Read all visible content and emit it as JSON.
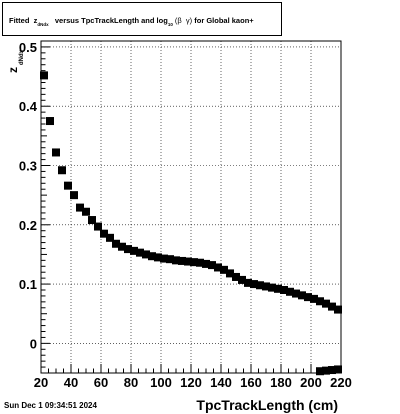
{
  "title": {
    "prefix": "Fitted",
    "z_symbol": "z",
    "z_sub": "dNdx",
    "middle": "versus TpcTrackLength and log",
    "log_sub": "10",
    "paren_open": "(",
    "beta": "β",
    "gamma": "γ",
    "paren_close": ")",
    "suffix": "for Global kaon+"
  },
  "footer": {
    "date": "Sun Dec  1 09:34:51 2024"
  },
  "chart_data": {
    "type": "scatter",
    "xlabel": "TpcTrackLength (cm)",
    "ylabel": "z",
    "ylabel_sub": "dNdx",
    "xlim": [
      20,
      220
    ],
    "ylim": [
      -0.05,
      0.51
    ],
    "xticks": [
      20,
      40,
      60,
      80,
      100,
      120,
      140,
      160,
      180,
      200,
      220
    ],
    "yticks": [
      0,
      0.1,
      0.2,
      0.3,
      0.4,
      0.5
    ],
    "ytick_labels": [
      "0",
      "0.1",
      "0.2",
      "0.3",
      "0.4",
      "0.5"
    ],
    "grid": true,
    "marker": "square",
    "color": "#000000",
    "series": [
      {
        "points": [
          [
            22,
            0.452
          ],
          [
            26,
            0.375
          ],
          [
            30,
            0.322
          ],
          [
            34,
            0.292
          ],
          [
            38,
            0.266
          ],
          [
            42,
            0.25
          ],
          [
            46,
            0.229
          ],
          [
            50,
            0.222
          ],
          [
            54,
            0.208
          ],
          [
            58,
            0.197
          ],
          [
            62,
            0.185
          ],
          [
            66,
            0.178
          ],
          [
            70,
            0.168
          ],
          [
            74,
            0.163
          ],
          [
            78,
            0.159
          ],
          [
            82,
            0.156
          ],
          [
            86,
            0.153
          ],
          [
            90,
            0.15
          ],
          [
            94,
            0.147
          ],
          [
            98,
            0.145
          ],
          [
            102,
            0.143
          ],
          [
            106,
            0.142
          ],
          [
            110,
            0.14
          ],
          [
            114,
            0.139
          ],
          [
            118,
            0.138
          ],
          [
            122,
            0.137
          ],
          [
            126,
            0.136
          ],
          [
            130,
            0.134
          ],
          [
            134,
            0.132
          ],
          [
            138,
            0.128
          ],
          [
            142,
            0.124
          ],
          [
            146,
            0.118
          ],
          [
            150,
            0.112
          ],
          [
            154,
            0.107
          ],
          [
            158,
            0.102
          ],
          [
            162,
            0.1
          ],
          [
            166,
            0.098
          ],
          [
            170,
            0.096
          ],
          [
            174,
            0.094
          ],
          [
            178,
            0.092
          ],
          [
            182,
            0.09
          ],
          [
            186,
            0.087
          ],
          [
            190,
            0.084
          ],
          [
            194,
            0.081
          ],
          [
            198,
            0.078
          ],
          [
            202,
            0.075
          ],
          [
            206,
            0.071
          ],
          [
            210,
            0.067
          ],
          [
            214,
            0.062
          ],
          [
            218,
            0.057
          ]
        ]
      },
      {
        "points": [
          [
            206,
            -0.047
          ],
          [
            210,
            -0.046
          ],
          [
            214,
            -0.045
          ],
          [
            218,
            -0.044
          ]
        ]
      }
    ]
  }
}
